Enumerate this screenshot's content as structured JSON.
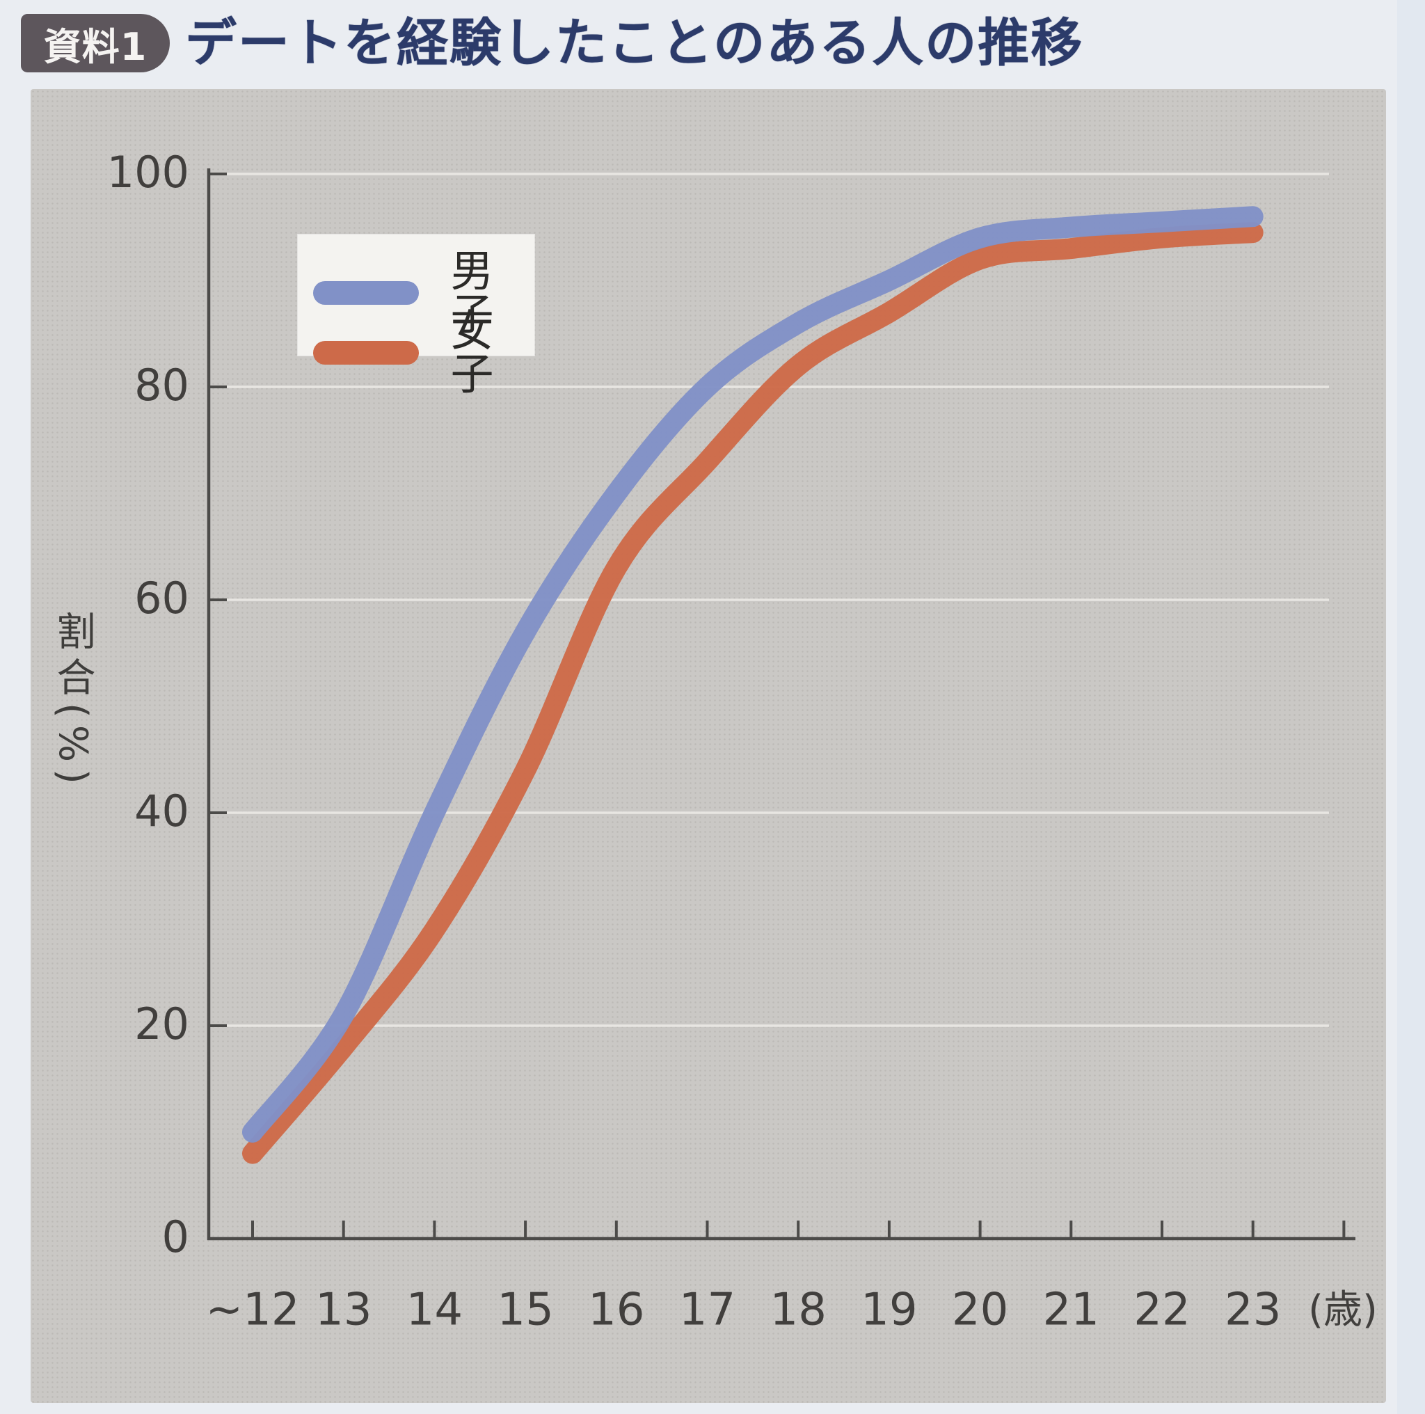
{
  "header": {
    "badge": "資料1",
    "title": "デートを経験したことのある人の推移"
  },
  "colors": {
    "title_navy": "#2c3b6a",
    "badge_bg": "#5d565c",
    "panel_grey": "#cac8c5",
    "gridline_white": "#eceae6",
    "axis_dark": "#4c4b49",
    "boys_blue": "#8191c7",
    "girls_red": "#cd6a49",
    "legend_bg": "#f4f3f0"
  },
  "chart_data": {
    "type": "line",
    "title": "デートを経験したことのある人の推移",
    "categories": [
      "~12",
      "13",
      "14",
      "15",
      "16",
      "17",
      "18",
      "19",
      "20",
      "21",
      "22",
      "23"
    ],
    "x_unit": "(歳)",
    "ylabel": "割合(%)",
    "ylim": [
      0,
      100
    ],
    "yticks": [
      0,
      20,
      40,
      60,
      80,
      100
    ],
    "grid": "horizontal white lines at 20/40/60/80/100",
    "legend_position": "top-left inside plot",
    "series": [
      {
        "name": "男子",
        "color": "#8191c7",
        "values": [
          10,
          21,
          40,
          57,
          70,
          80,
          86,
          90,
          94,
          95,
          95.5,
          96
        ]
      },
      {
        "name": "女子",
        "color": "#cd6a49",
        "values": [
          8,
          18,
          29,
          44,
          63,
          73,
          82,
          87,
          92,
          93,
          94,
          94.5
        ]
      }
    ]
  }
}
